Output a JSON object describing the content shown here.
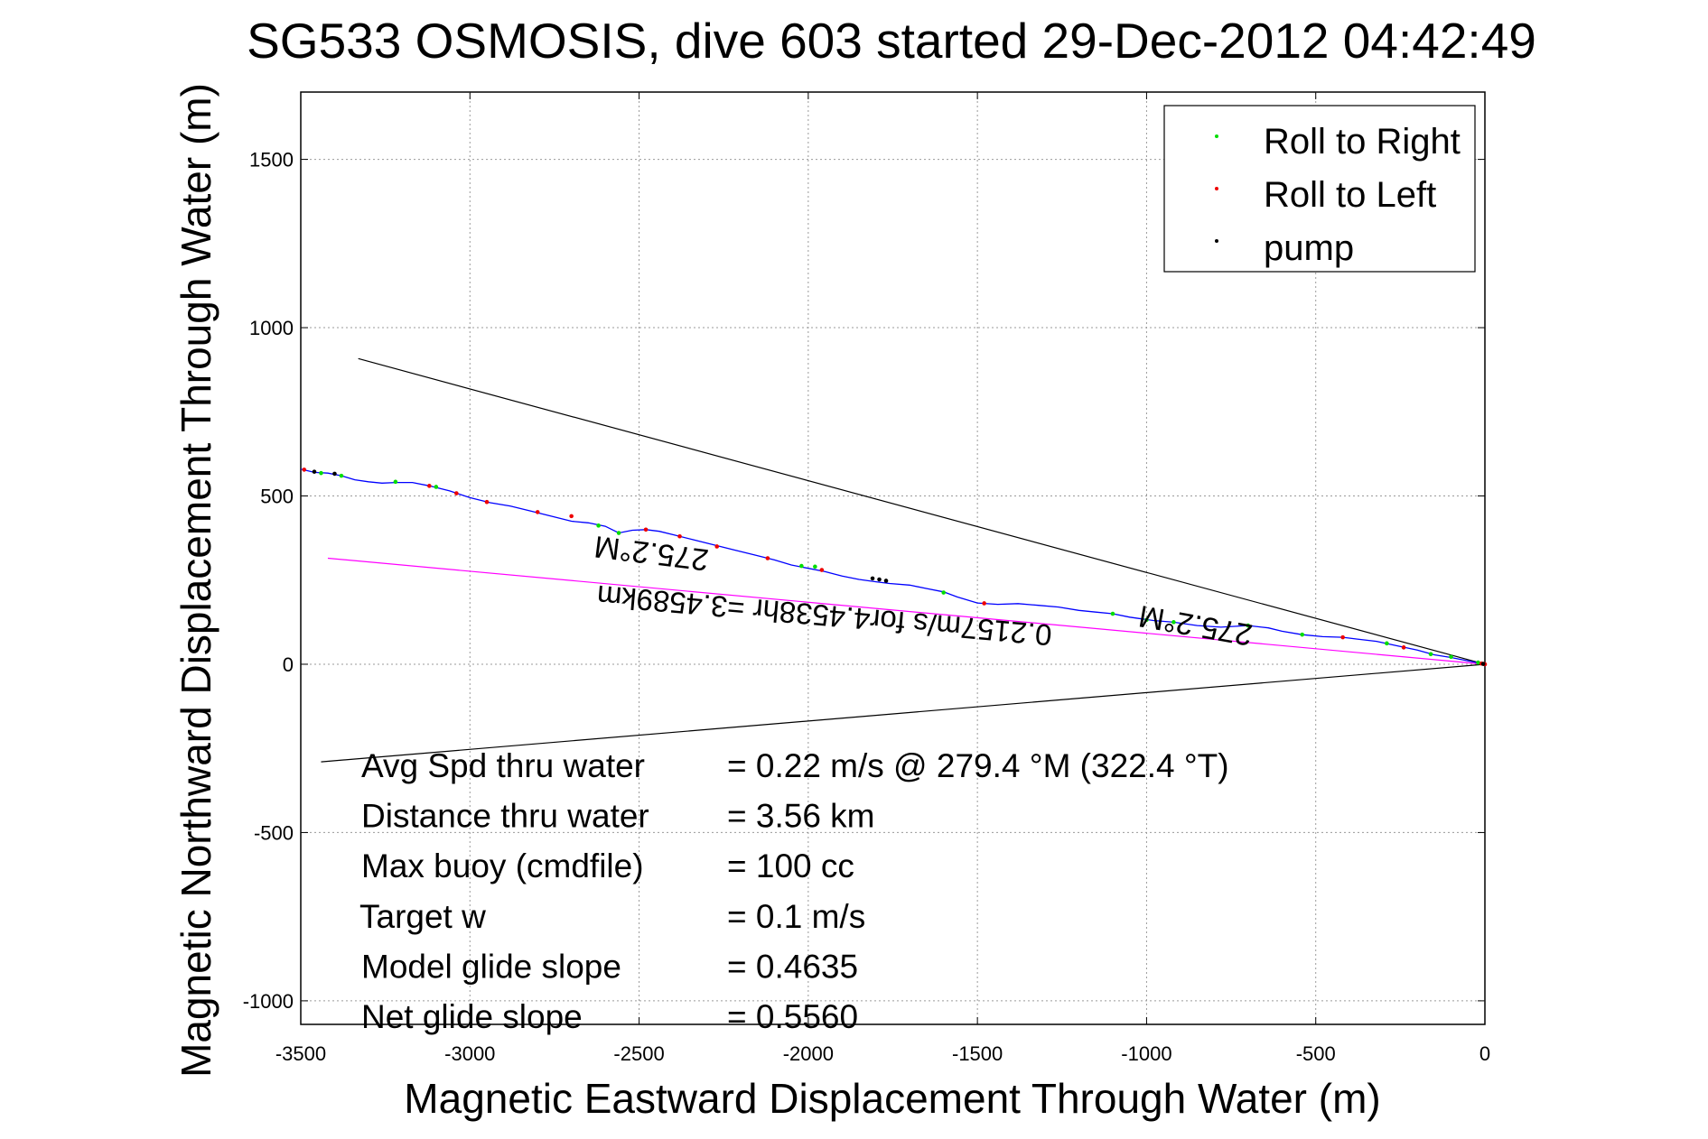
{
  "chart_data": {
    "type": "line",
    "title": "SG533 OSMOSIS, dive 603 started 29-Dec-2012 04:42:49",
    "xlabel": "Magnetic Eastward Displacement Through Water (m)",
    "ylabel": "Magnetic Northward Displacement Through Water (m)",
    "xlim": [
      -3500,
      0
    ],
    "ylim": [
      -1070,
      1700
    ],
    "x_ticks": [
      -3500,
      -3000,
      -2500,
      -2000,
      -1500,
      -1000,
      -500,
      0
    ],
    "y_ticks": [
      -1000,
      -500,
      0,
      500,
      1000,
      1500
    ],
    "grid": true,
    "legend": {
      "placement": "top-right",
      "entries": [
        {
          "label": "Roll to Right",
          "color": "#00dd00"
        },
        {
          "label": "Roll to Left",
          "color": "#ee0000"
        },
        {
          "label": "pump",
          "color": "#000000"
        }
      ]
    },
    "track": {
      "color": "#0000ff",
      "x": [
        0,
        -50,
        -100,
        -150,
        -200,
        -260,
        -320,
        -380,
        -420,
        -480,
        -540,
        -600,
        -640,
        -700,
        -780,
        -850,
        -920,
        -980,
        -1050,
        -1100,
        -1150,
        -1200,
        -1260,
        -1320,
        -1380,
        -1440,
        -1500,
        -1560,
        -1600,
        -1650,
        -1700,
        -1760,
        -1800,
        -1850,
        -1900,
        -1950,
        -2000,
        -2050,
        -2100,
        -2160,
        -2220,
        -2280,
        -2340,
        -2400,
        -2440,
        -2480,
        -2520,
        -2560,
        -2600,
        -2650,
        -2700,
        -2760,
        -2820,
        -2880,
        -2940,
        -3000,
        -3060,
        -3120,
        -3170,
        -3220,
        -3260,
        -3300,
        -3340,
        -3380,
        -3420,
        -3460,
        -3500
      ],
      "y": [
        0,
        10,
        20,
        28,
        42,
        55,
        68,
        75,
        80,
        82,
        88,
        98,
        108,
        115,
        110,
        115,
        125,
        130,
        140,
        150,
        155,
        160,
        170,
        175,
        180,
        178,
        182,
        200,
        215,
        225,
        235,
        240,
        245,
        252,
        262,
        275,
        285,
        295,
        310,
        325,
        340,
        355,
        370,
        385,
        395,
        400,
        398,
        390,
        410,
        420,
        425,
        440,
        455,
        470,
        480,
        495,
        515,
        530,
        540,
        540,
        538,
        542,
        548,
        560,
        568,
        570,
        580
      ]
    },
    "roll_right_points": [
      {
        "x": -20,
        "y": 5
      },
      {
        "x": -100,
        "y": 22
      },
      {
        "x": -160,
        "y": 30
      },
      {
        "x": -290,
        "y": 62
      },
      {
        "x": -540,
        "y": 88
      },
      {
        "x": -700,
        "y": 115
      },
      {
        "x": -920,
        "y": 125
      },
      {
        "x": -1000,
        "y": 132
      },
      {
        "x": -1100,
        "y": 150
      },
      {
        "x": -1600,
        "y": 213
      },
      {
        "x": -1980,
        "y": 290
      },
      {
        "x": -2020,
        "y": 292
      },
      {
        "x": -2560,
        "y": 390
      },
      {
        "x": -2620,
        "y": 412
      },
      {
        "x": -3100,
        "y": 527
      },
      {
        "x": -3220,
        "y": 542
      },
      {
        "x": -3380,
        "y": 560
      },
      {
        "x": -3440,
        "y": 568
      }
    ],
    "roll_left_points": [
      {
        "x": 0,
        "y": 0
      },
      {
        "x": -10,
        "y": 2
      },
      {
        "x": -240,
        "y": 50
      },
      {
        "x": -420,
        "y": 80
      },
      {
        "x": -1480,
        "y": 181
      },
      {
        "x": -1960,
        "y": 280
      },
      {
        "x": -2120,
        "y": 315
      },
      {
        "x": -2270,
        "y": 350
      },
      {
        "x": -2380,
        "y": 380
      },
      {
        "x": -2480,
        "y": 400
      },
      {
        "x": -2700,
        "y": 440
      },
      {
        "x": -2800,
        "y": 452
      },
      {
        "x": -2950,
        "y": 482
      },
      {
        "x": -3040,
        "y": 508
      },
      {
        "x": -3120,
        "y": 530
      },
      {
        "x": -3490,
        "y": 578
      }
    ],
    "pump_points": [
      {
        "x": -5,
        "y": 1
      },
      {
        "x": -1770,
        "y": 248
      },
      {
        "x": -1790,
        "y": 252
      },
      {
        "x": -1810,
        "y": 255
      },
      {
        "x": -3400,
        "y": 566
      },
      {
        "x": -3460,
        "y": 572
      }
    ],
    "reference_lines": [
      {
        "color": "#000000",
        "x": [
          0,
          -3330
        ],
        "y": [
          0,
          908
        ]
      },
      {
        "color": "#000000",
        "x": [
          0,
          -3440
        ],
        "y": [
          0,
          -290
        ]
      },
      {
        "color": "#ff00ff",
        "x": [
          0,
          -3420
        ],
        "y": [
          0,
          315
        ]
      }
    ],
    "annotations": [
      {
        "text": "275.2°M",
        "x": -2460,
        "y": 360
      },
      {
        "text": "275.2°M",
        "x": -850,
        "y": 145
      },
      {
        "text": "0.2157m/s for4.4538hr =3.4589km",
        "x": -1950,
        "y": 175
      }
    ],
    "info_block": [
      {
        "label": "Avg Spd thru water",
        "value": "=  0.22 m/s @ 279.4 °M (322.4 °T)"
      },
      {
        "label": "Distance thru water",
        "value": "=  3.56 km"
      },
      {
        "label": "Max buoy (cmdfile)",
        "value": "= 100 cc"
      },
      {
        "label": "Target w",
        "value": "= 0.1 m/s"
      },
      {
        "label": "Model glide slope",
        "value": "= 0.4635"
      },
      {
        "label": "Net glide slope",
        "value": "= 0.5560"
      }
    ]
  }
}
